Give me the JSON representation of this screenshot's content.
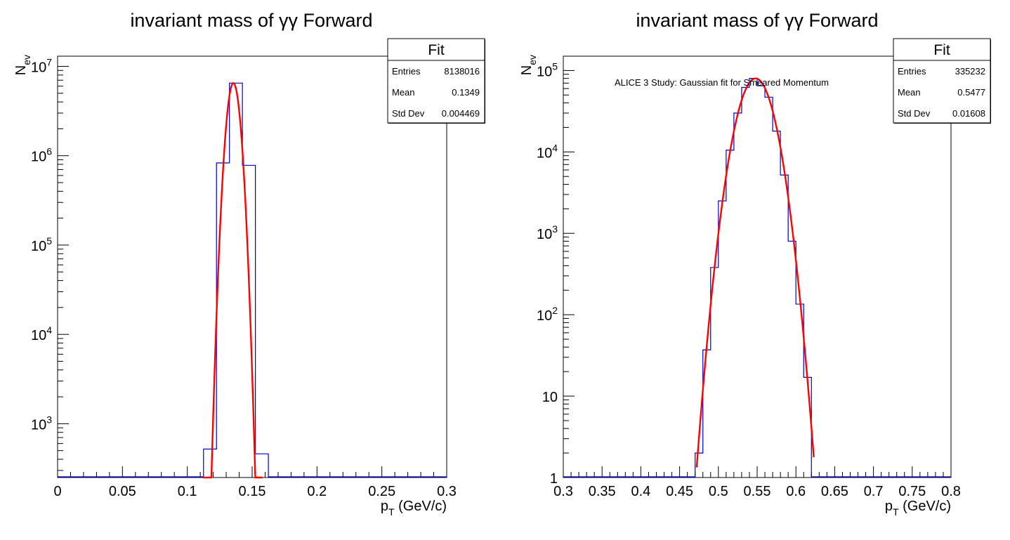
{
  "chart_data": [
    {
      "type": "histogram",
      "title": "invariant mass of γγ Forward",
      "xlabel": "p_T  (GeV/c)",
      "ylabel": "N_ev",
      "xlim": [
        0,
        0.3
      ],
      "ylim": [
        250,
        13000000
      ],
      "yscale": "log",
      "x_ticks": [
        "0",
        "0.05",
        "0.1",
        "0.15",
        "0.2",
        "0.25",
        "0.3"
      ],
      "y_ticks": [
        "10^3",
        "10^4",
        "10^5",
        "10^6",
        "10^7"
      ],
      "hist_color": "#0000cc",
      "fit_color": "#ff0000",
      "histogram": {
        "bin_edges": [
          0.0,
          0.0125,
          0.025,
          0.0375,
          0.05,
          0.0625,
          0.075,
          0.0875,
          0.1,
          0.1125,
          0.1225,
          0.1325,
          0.1425,
          0.1525,
          0.1625,
          0.175,
          0.1875,
          0.2,
          0.2125,
          0.225,
          0.2375,
          0.25,
          0.2625,
          0.275,
          0.2875,
          0.3
        ],
        "counts": [
          0,
          0,
          0,
          0,
          0,
          0,
          0,
          0,
          0,
          520,
          830000,
          6500000,
          780000,
          460,
          0,
          0,
          0,
          0,
          0,
          0,
          0,
          0,
          0,
          0,
          0
        ]
      },
      "fit": {
        "type": "gaussian",
        "amplitude": 6500000,
        "mean": 0.1355,
        "sigma": 0.00375,
        "x_range": [
          0.112,
          0.158
        ]
      },
      "stats_box": {
        "title": "Fit",
        "rows": [
          {
            "label": "Entries",
            "value": "8138016"
          },
          {
            "label": "Mean",
            "value": "0.1349"
          },
          {
            "label": "Std Dev",
            "value": "0.004469"
          }
        ]
      },
      "annotation": ""
    },
    {
      "type": "histogram",
      "title": "invariant mass of γγ Forward",
      "xlabel": "p_T  (GeV/c)",
      "ylabel": "N_ev",
      "xlim": [
        0.3,
        0.8
      ],
      "ylim": [
        1,
        150000
      ],
      "yscale": "log",
      "x_ticks": [
        "0.3",
        "0.35",
        "0.4",
        "0.45",
        "0.5",
        "0.55",
        "0.6",
        "0.65",
        "0.7",
        "0.75",
        "0.8"
      ],
      "y_ticks": [
        "1",
        "10",
        "10^2",
        "10^3",
        "10^4",
        "10^5"
      ],
      "hist_color": "#0000cc",
      "fit_color": "#ff0000",
      "histogram": {
        "bin_edges": [
          0.3,
          0.31,
          0.32,
          0.33,
          0.34,
          0.35,
          0.36,
          0.37,
          0.38,
          0.39,
          0.4,
          0.41,
          0.42,
          0.43,
          0.44,
          0.45,
          0.46,
          0.47,
          0.48,
          0.49,
          0.5,
          0.51,
          0.52,
          0.53,
          0.54,
          0.55,
          0.56,
          0.57,
          0.58,
          0.59,
          0.6,
          0.61,
          0.62,
          0.63,
          0.64,
          0.65,
          0.66,
          0.67,
          0.68,
          0.69,
          0.7,
          0.71,
          0.72,
          0.73,
          0.74,
          0.75,
          0.76,
          0.77,
          0.78,
          0.79,
          0.8
        ],
        "counts": [
          0,
          0,
          0,
          0,
          0,
          0,
          0,
          0,
          0,
          0,
          0,
          0,
          0,
          0,
          0,
          0,
          0,
          2,
          37,
          380,
          2500,
          10500,
          30000,
          62000,
          80000,
          65000,
          47000,
          18000,
          5200,
          800,
          135,
          17,
          0,
          0,
          0,
          0,
          0,
          0,
          0,
          0,
          0,
          0,
          0,
          0,
          0,
          0,
          0,
          0,
          0,
          0
        ]
      },
      "fit": {
        "type": "gaussian",
        "amplitude": 80000,
        "mean": 0.548,
        "sigma": 0.0162,
        "x_range": [
          0.472,
          0.623
        ]
      },
      "stats_box": {
        "title": "Fit",
        "rows": [
          {
            "label": "Entries",
            "value": "335232"
          },
          {
            "label": "Mean",
            "value": "0.5477"
          },
          {
            "label": "Std Dev",
            "value": "0.01608"
          }
        ]
      },
      "annotation": "ALICE 3 Study:  Gaussian fit for Smeared Momentum"
    }
  ]
}
